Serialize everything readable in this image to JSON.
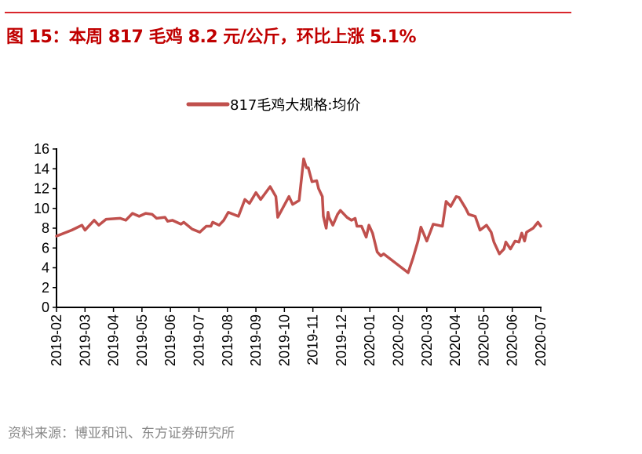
{
  "header": {
    "title": "图  15：本周 817 毛鸡 8.2 元/公斤，环比上涨 5.1%"
  },
  "footer": {
    "source": "资料来源：博亚和讯、东方证券研究所"
  },
  "colors": {
    "title": "#c00000",
    "rule": "#d9262c",
    "series": "#c0504d"
  },
  "chart_data": {
    "type": "line",
    "title": "",
    "xlabel": "",
    "ylabel": "",
    "ylim": [
      0,
      16
    ],
    "yticks": [
      0,
      2,
      4,
      6,
      8,
      10,
      12,
      14,
      16
    ],
    "xticks": [
      "2019-02",
      "2019-03",
      "2019-04",
      "2019-05",
      "2019-06",
      "2019-07",
      "2019-08",
      "2019-09",
      "2019-10",
      "2019-11",
      "2019-12",
      "2020-01",
      "2020-02",
      "2020-03",
      "2020-04",
      "2020-05",
      "2020-06",
      "2020-07"
    ],
    "grid": false,
    "legend_position": "top",
    "series": [
      {
        "name": "817毛鸡大规格:均价",
        "points": [
          [
            "2019-02-01",
            7.2
          ],
          [
            "2019-02-16",
            7.8
          ],
          [
            "2019-02-26",
            8.3
          ],
          [
            "2019-03-01",
            7.8
          ],
          [
            "2019-03-11",
            8.8
          ],
          [
            "2019-03-16",
            8.3
          ],
          [
            "2019-03-24",
            8.9
          ],
          [
            "2019-04-08",
            9.0
          ],
          [
            "2019-04-14",
            8.8
          ],
          [
            "2019-04-21",
            9.5
          ],
          [
            "2019-04-28",
            9.2
          ],
          [
            "2019-05-05",
            9.5
          ],
          [
            "2019-05-12",
            9.4
          ],
          [
            "2019-05-17",
            9.0
          ],
          [
            "2019-05-26",
            9.1
          ],
          [
            "2019-05-29",
            8.7
          ],
          [
            "2019-06-03",
            8.8
          ],
          [
            "2019-06-12",
            8.4
          ],
          [
            "2019-06-15",
            8.6
          ],
          [
            "2019-06-24",
            7.9
          ],
          [
            "2019-07-02",
            7.6
          ],
          [
            "2019-07-09",
            8.2
          ],
          [
            "2019-07-14",
            8.2
          ],
          [
            "2019-07-16",
            8.6
          ],
          [
            "2019-07-23",
            8.3
          ],
          [
            "2019-07-28",
            8.8
          ],
          [
            "2019-08-02",
            9.6
          ],
          [
            "2019-08-13",
            9.2
          ],
          [
            "2019-08-20",
            10.9
          ],
          [
            "2019-08-25",
            10.5
          ],
          [
            "2019-09-01",
            11.6
          ],
          [
            "2019-09-06",
            10.9
          ],
          [
            "2019-09-16",
            12.2
          ],
          [
            "2019-09-22",
            11.2
          ],
          [
            "2019-09-24",
            9.1
          ],
          [
            "2019-10-06",
            11.2
          ],
          [
            "2019-10-10",
            10.4
          ],
          [
            "2019-10-17",
            10.8
          ],
          [
            "2019-10-22",
            15.0
          ],
          [
            "2019-10-25",
            14.1
          ],
          [
            "2019-10-27",
            14.1
          ],
          [
            "2019-10-31",
            12.7
          ],
          [
            "2019-11-05",
            12.8
          ],
          [
            "2019-11-07",
            12.0
          ],
          [
            "2019-11-11",
            11.2
          ],
          [
            "2019-11-12",
            9.2
          ],
          [
            "2019-11-15",
            8.0
          ],
          [
            "2019-11-17",
            9.6
          ],
          [
            "2019-11-18",
            9.1
          ],
          [
            "2019-11-22",
            8.3
          ],
          [
            "2019-11-27",
            9.4
          ],
          [
            "2019-11-30",
            9.8
          ],
          [
            "2019-12-07",
            9.1
          ],
          [
            "2019-12-12",
            8.8
          ],
          [
            "2019-12-16",
            9.0
          ],
          [
            "2019-12-18",
            8.2
          ],
          [
            "2019-12-23",
            8.2
          ],
          [
            "2019-12-28",
            7.1
          ],
          [
            "2019-12-31",
            8.3
          ],
          [
            "2020-01-04",
            7.5
          ],
          [
            "2020-01-09",
            5.6
          ],
          [
            "2020-01-13",
            5.2
          ],
          [
            "2020-01-16",
            5.4
          ],
          [
            "2020-02-11",
            3.5
          ],
          [
            "2020-02-16",
            5.0
          ],
          [
            "2020-02-21",
            6.7
          ],
          [
            "2020-02-24",
            8.1
          ],
          [
            "2020-03-01",
            6.7
          ],
          [
            "2020-03-08",
            8.4
          ],
          [
            "2020-03-13",
            8.3
          ],
          [
            "2020-03-18",
            8.2
          ],
          [
            "2020-03-22",
            10.7
          ],
          [
            "2020-03-27",
            10.2
          ],
          [
            "2020-04-02",
            11.2
          ],
          [
            "2020-04-05",
            11.1
          ],
          [
            "2020-04-12",
            10.0
          ],
          [
            "2020-04-15",
            9.4
          ],
          [
            "2020-04-22",
            9.2
          ],
          [
            "2020-04-27",
            7.8
          ],
          [
            "2020-05-04",
            8.3
          ],
          [
            "2020-05-09",
            7.6
          ],
          [
            "2020-05-12",
            6.6
          ],
          [
            "2020-05-18",
            5.4
          ],
          [
            "2020-05-23",
            5.9
          ],
          [
            "2020-05-25",
            6.6
          ],
          [
            "2020-05-30",
            5.9
          ],
          [
            "2020-06-04",
            6.7
          ],
          [
            "2020-06-08",
            6.6
          ],
          [
            "2020-06-11",
            7.5
          ],
          [
            "2020-06-14",
            6.7
          ],
          [
            "2020-06-16",
            7.6
          ],
          [
            "2020-06-23",
            8.0
          ],
          [
            "2020-06-28",
            8.6
          ],
          [
            "2020-07-01",
            8.2
          ]
        ]
      }
    ]
  }
}
